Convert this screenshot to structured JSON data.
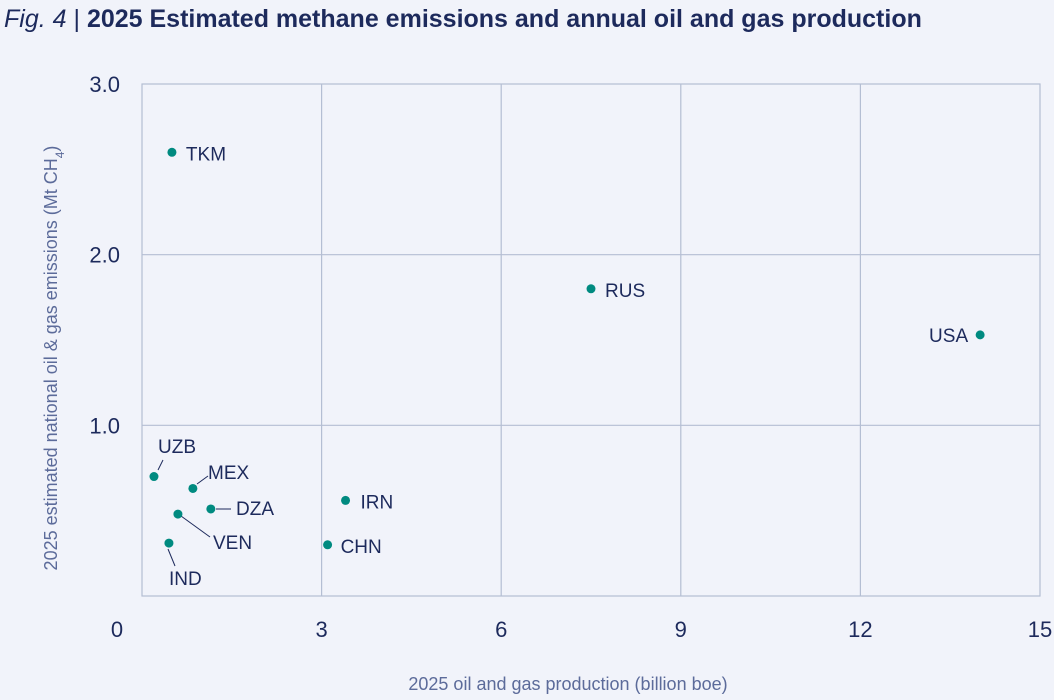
{
  "figure": {
    "label": "Fig. 4",
    "separator": "|",
    "title": "2025 Estimated methane emissions and annual oil and gas production"
  },
  "colors": {
    "background": "#f1f3fa",
    "grid": "#b4bed3",
    "point": "#008a80",
    "text": "#1d2a5c",
    "axis_label": "#5c6b9a"
  },
  "chart_data": {
    "type": "scatter",
    "title": "2025 Estimated methane emissions and annual oil and gas production",
    "xlabel": "2025 oil and gas production (billion boe)",
    "ylabel_main": "2025 estimated national oil & gas emissions (Mt CH",
    "ylabel_sub": "4",
    "ylabel_close": ")",
    "xlim": [
      0,
      15
    ],
    "ylim": [
      0,
      3
    ],
    "x_ticks": [
      0,
      3,
      6,
      9,
      12,
      15
    ],
    "x_tick_labels": [
      "0",
      "3",
      "6",
      "9",
      "12",
      "15"
    ],
    "y_ticks": [
      1,
      2,
      3
    ],
    "y_tick_labels": [
      "1.0",
      "2.0",
      "3.0"
    ],
    "grid": true,
    "points": [
      {
        "label": "TKM",
        "x": 0.5,
        "y": 2.6
      },
      {
        "label": "RUS",
        "x": 7.5,
        "y": 1.8
      },
      {
        "label": "USA",
        "x": 14.0,
        "y": 1.53
      },
      {
        "label": "UZB",
        "x": 0.2,
        "y": 0.7
      },
      {
        "label": "MEX",
        "x": 0.85,
        "y": 0.63
      },
      {
        "label": "DZA",
        "x": 1.15,
        "y": 0.51
      },
      {
        "label": "VEN",
        "x": 0.6,
        "y": 0.48
      },
      {
        "label": "IND",
        "x": 0.45,
        "y": 0.31
      },
      {
        "label": "IRN",
        "x": 3.4,
        "y": 0.56
      },
      {
        "label": "CHN",
        "x": 3.1,
        "y": 0.3
      }
    ]
  }
}
